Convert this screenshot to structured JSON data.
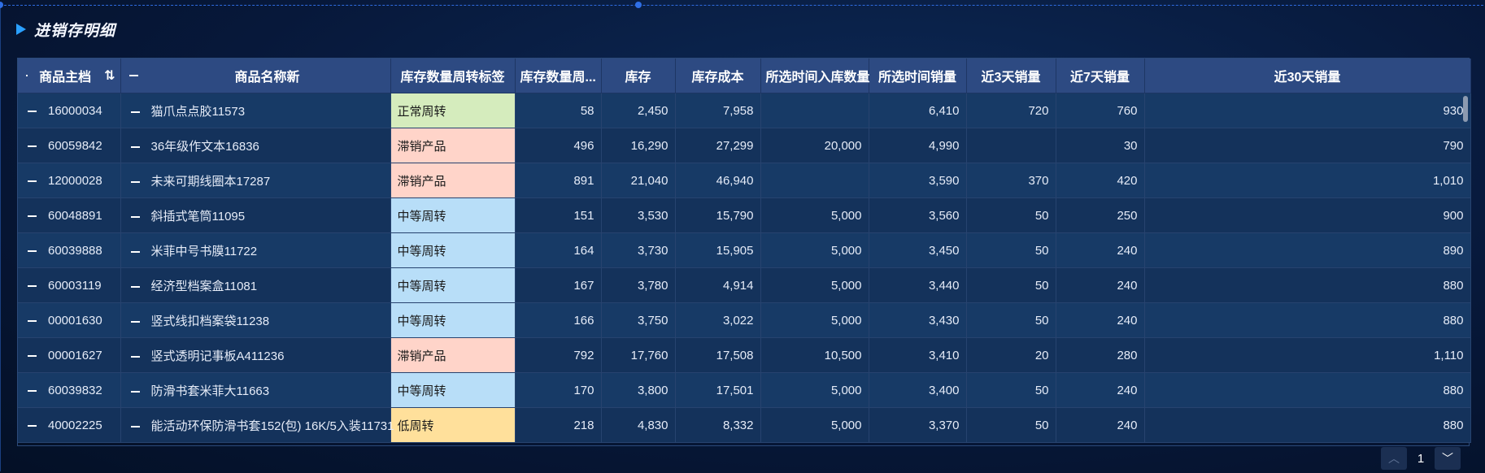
{
  "panel": {
    "title": "进销存明细"
  },
  "colors": {
    "tag_normal": "#d5ecbd",
    "tag_slow": "#ffd4c9",
    "tag_medium": "#b8def8",
    "tag_low": "#ffe09b"
  },
  "table": {
    "headers": [
      "商品主档",
      "商品名称新",
      "库存数量周转标签",
      "库存数量周...",
      "库存",
      "库存成本",
      "所选时间入库数量",
      "所选时间销量",
      "近3天销量",
      "近7天销量",
      "近30天销量"
    ],
    "rows": [
      {
        "code": "16000034",
        "name": "猫爪点点胶11573",
        "tag": "正常周转",
        "tag_color": "#d5ecbd",
        "turn": "58",
        "stock": "2,450",
        "cost": "7,958",
        "inbound": "",
        "sales": "6,410",
        "d3": "720",
        "d7": "760",
        "d30": "930"
      },
      {
        "code": "60059842",
        "name": "36年级作文本16836",
        "tag": "滞销产品",
        "tag_color": "#ffd4c9",
        "turn": "496",
        "stock": "16,290",
        "cost": "27,299",
        "inbound": "20,000",
        "sales": "4,990",
        "d3": "",
        "d7": "30",
        "d30": "790"
      },
      {
        "code": "12000028",
        "name": "未来可期线圈本17287",
        "tag": "滞销产品",
        "tag_color": "#ffd4c9",
        "turn": "891",
        "stock": "21,040",
        "cost": "46,940",
        "inbound": "",
        "sales": "3,590",
        "d3": "370",
        "d7": "420",
        "d30": "1,010"
      },
      {
        "code": "60048891",
        "name": "斜插式笔筒11095",
        "tag": "中等周转",
        "tag_color": "#b8def8",
        "turn": "151",
        "stock": "3,530",
        "cost": "15,790",
        "inbound": "5,000",
        "sales": "3,560",
        "d3": "50",
        "d7": "250",
        "d30": "900"
      },
      {
        "code": "60039888",
        "name": "米菲中号书膜11722",
        "tag": "中等周转",
        "tag_color": "#b8def8",
        "turn": "164",
        "stock": "3,730",
        "cost": "15,905",
        "inbound": "5,000",
        "sales": "3,450",
        "d3": "50",
        "d7": "240",
        "d30": "890"
      },
      {
        "code": "60003119",
        "name": "经济型档案盒11081",
        "tag": "中等周转",
        "tag_color": "#b8def8",
        "turn": "167",
        "stock": "3,780",
        "cost": "4,914",
        "inbound": "5,000",
        "sales": "3,440",
        "d3": "50",
        "d7": "240",
        "d30": "880"
      },
      {
        "code": "00001630",
        "name": "竖式线扣档案袋11238",
        "tag": "中等周转",
        "tag_color": "#b8def8",
        "turn": "166",
        "stock": "3,750",
        "cost": "3,022",
        "inbound": "5,000",
        "sales": "3,430",
        "d3": "50",
        "d7": "240",
        "d30": "880"
      },
      {
        "code": "00001627",
        "name": "竖式透明记事板A411236",
        "tag": "滞销产品",
        "tag_color": "#ffd4c9",
        "turn": "792",
        "stock": "17,760",
        "cost": "17,508",
        "inbound": "10,500",
        "sales": "3,410",
        "d3": "20",
        "d7": "280",
        "d30": "1,110"
      },
      {
        "code": "60039832",
        "name": "防滑书套米菲大11663",
        "tag": "中等周转",
        "tag_color": "#b8def8",
        "turn": "170",
        "stock": "3,800",
        "cost": "17,501",
        "inbound": "5,000",
        "sales": "3,400",
        "d3": "50",
        "d7": "240",
        "d30": "880"
      },
      {
        "code": "40002225",
        "name": "能活动环保防滑书套152(包) 16K/5入装11731",
        "tag": "低周转",
        "tag_color": "#ffe09b",
        "turn": "218",
        "stock": "4,830",
        "cost": "8,332",
        "inbound": "5,000",
        "sales": "3,370",
        "d3": "50",
        "d7": "240",
        "d30": "880"
      }
    ]
  },
  "pager": {
    "page": "1",
    "prev_icon": "chevron-up-icon",
    "next_icon": "chevron-down-icon"
  }
}
